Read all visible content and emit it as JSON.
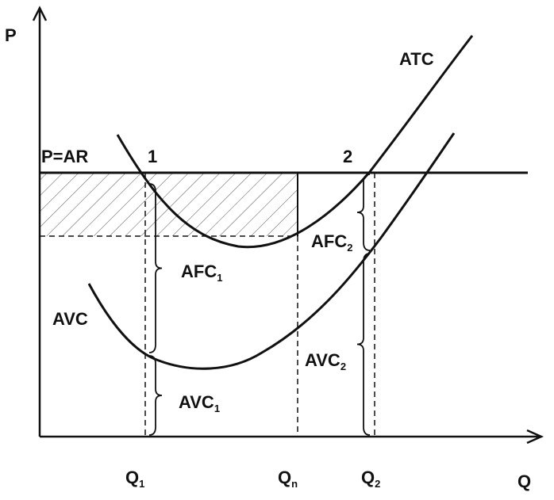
{
  "axes": {
    "y": "P",
    "x": "Q"
  },
  "price_line": "P=AR",
  "points": [
    "1",
    "2"
  ],
  "curves": {
    "atc": "ATC",
    "avc": "AVC"
  },
  "braces": [
    {
      "main": "AFC",
      "sub": "1"
    },
    {
      "main": "AVC",
      "sub": "1"
    },
    {
      "main": "AFC",
      "sub": "2"
    },
    {
      "main": "AVC",
      "sub": "2"
    }
  ],
  "quantities": [
    {
      "main": "Q",
      "sub": "1"
    },
    {
      "main": "Q",
      "sub": "n"
    },
    {
      "main": "Q",
      "sub": "2"
    }
  ]
}
